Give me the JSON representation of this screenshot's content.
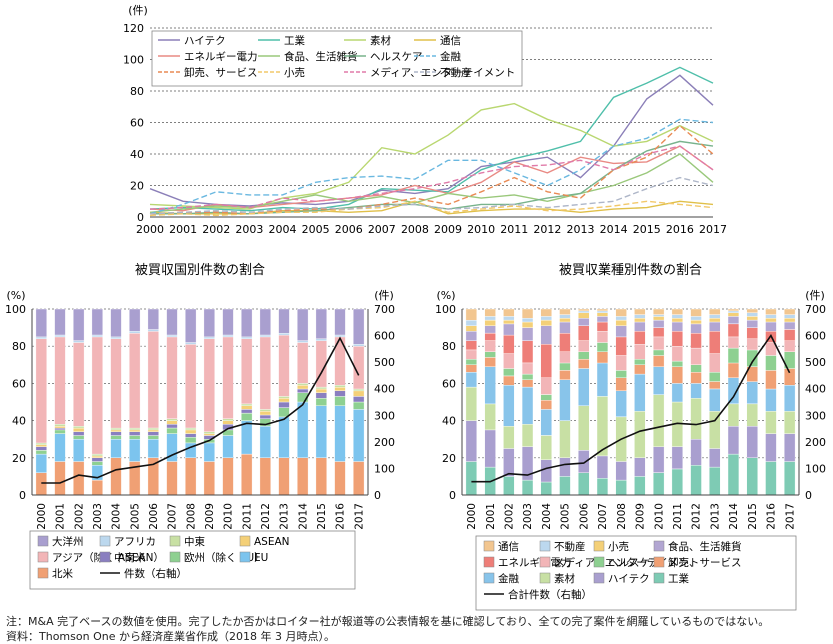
{
  "notes": {
    "note1": "注：M&A 完了ベースの数値を使用。完了したか否かはロイター社が報道等の公表情報を基に確認しており、全ての完了案件を網羅しているものではない。",
    "note2": "資料：Thomson One から経済産業省作成（2018 年 3 月時点）。"
  },
  "chart_data": [
    {
      "type": "line",
      "title": "",
      "ylabel": "(件)",
      "ylim": [
        0,
        120
      ],
      "yticks": [
        "0",
        "20",
        "40",
        "60",
        "80",
        "100",
        "120"
      ],
      "x": [
        "2000",
        "2001",
        "2002",
        "2003",
        "2004",
        "2005",
        "2006",
        "2007",
        "2008",
        "2009",
        "2010",
        "2011",
        "2012",
        "2013",
        "2014",
        "2015",
        "2016",
        "2017"
      ],
      "legend": "top-left",
      "series": [
        {
          "name": "ハイテク",
          "color": "#8b7fb8",
          "dash": "",
          "values": [
            18,
            10,
            8,
            7,
            9,
            8,
            10,
            17,
            15,
            18,
            32,
            35,
            38,
            25,
            45,
            75,
            90,
            71
          ]
        },
        {
          "name": "工業",
          "color": "#4fbfaa",
          "dash": "",
          "values": [
            5,
            6,
            5,
            4,
            6,
            5,
            8,
            18,
            17,
            16,
            30,
            37,
            42,
            48,
            76,
            85,
            95,
            85
          ]
        },
        {
          "name": "素材",
          "color": "#b9d770",
          "dash": "",
          "values": [
            8,
            7,
            6,
            5,
            12,
            15,
            22,
            44,
            40,
            52,
            68,
            72,
            62,
            55,
            45,
            48,
            58,
            48
          ]
        },
        {
          "name": "通信",
          "color": "#e0c04a",
          "dash": "",
          "values": [
            3,
            2,
            2,
            2,
            4,
            4,
            3,
            4,
            10,
            2,
            4,
            5,
            5,
            3,
            5,
            6,
            10,
            8
          ]
        },
        {
          "name": "エネルギー電力",
          "color": "#e98a84",
          "dash": "",
          "values": [
            5,
            4,
            8,
            6,
            8,
            10,
            12,
            14,
            20,
            15,
            22,
            35,
            28,
            38,
            34,
            35,
            45,
            30
          ]
        },
        {
          "name": "食品、生活雑貨",
          "color": "#9ac87b",
          "dash": "",
          "values": [
            3,
            5,
            7,
            6,
            10,
            14,
            10,
            13,
            9,
            15,
            12,
            14,
            10,
            15,
            20,
            28,
            40,
            22
          ]
        },
        {
          "name": "ヘルスケア",
          "color": "#78b38c",
          "dash": "",
          "values": [
            2,
            2,
            3,
            2,
            3,
            4,
            6,
            8,
            8,
            5,
            8,
            8,
            12,
            15,
            30,
            42,
            48,
            45
          ]
        },
        {
          "name": "金融",
          "color": "#6ab8e0",
          "dash": "6,3",
          "values": [
            2,
            8,
            16,
            14,
            14,
            22,
            25,
            26,
            24,
            36,
            36,
            28,
            20,
            30,
            45,
            50,
            62,
            60
          ]
        },
        {
          "name": "卸売、サービス",
          "color": "#e98a54",
          "dash": "6,3",
          "values": [
            2,
            3,
            3,
            2,
            4,
            5,
            5,
            8,
            12,
            8,
            16,
            25,
            16,
            12,
            30,
            38,
            58,
            40
          ]
        },
        {
          "name": "小売",
          "color": "#f2c86a",
          "dash": "6,3",
          "values": [
            1,
            2,
            1,
            2,
            3,
            3,
            5,
            6,
            10,
            3,
            5,
            7,
            4,
            5,
            7,
            10,
            8,
            6
          ]
        },
        {
          "name": "メディア、エンターテイメント",
          "color": "#e07aa8",
          "dash": "6,3",
          "values": [
            5,
            6,
            8,
            6,
            12,
            10,
            12,
            15,
            18,
            22,
            28,
            32,
            33,
            36,
            30,
            40,
            45,
            30
          ]
        },
        {
          "name": "不動産",
          "color": "#aeb6c8",
          "dash": "6,3",
          "values": [
            2,
            3,
            4,
            3,
            5,
            6,
            5,
            7,
            8,
            5,
            6,
            8,
            6,
            8,
            10,
            18,
            25,
            20
          ]
        }
      ]
    },
    {
      "type": "bar",
      "title": "被買収国別件数の割合",
      "ylabel": "(%)",
      "ylabel_right": "(件)",
      "ylim": [
        0,
        100
      ],
      "ylim_right": [
        0,
        700
      ],
      "yticks": [
        "0",
        "20",
        "40",
        "60",
        "80",
        "100"
      ],
      "yticks_right": [
        "0",
        "100",
        "200",
        "300",
        "400",
        "500",
        "600",
        "700"
      ],
      "categories": [
        "2000",
        "2001",
        "2002",
        "2003",
        "2004",
        "2005",
        "2006",
        "2007",
        "2008",
        "2009",
        "2010",
        "2011",
        "2012",
        "2013",
        "2014",
        "2015",
        "2016",
        "2017"
      ],
      "legend": "bottom",
      "series": [
        {
          "name": "北米",
          "color": "#f0a074",
          "values": [
            12,
            18,
            18,
            8,
            20,
            18,
            20,
            18,
            20,
            18,
            20,
            22,
            20,
            20,
            20,
            20,
            18,
            18
          ]
        },
        {
          "name": "EU",
          "color": "#7cc4ee",
          "values": [
            10,
            15,
            12,
            8,
            10,
            12,
            10,
            15,
            8,
            10,
            12,
            18,
            17,
            22,
            30,
            28,
            30,
            28
          ]
        },
        {
          "name": "欧州（除く EU）",
          "color": "#8ed091",
          "values": [
            2,
            2,
            2,
            2,
            2,
            2,
            2,
            3,
            3,
            2,
            3,
            4,
            4,
            5,
            5,
            4,
            5,
            4
          ]
        },
        {
          "name": "中南米",
          "color": "#8a7fc0",
          "values": [
            2,
            1,
            2,
            2,
            2,
            2,
            2,
            2,
            2,
            2,
            3,
            2,
            2,
            3,
            2,
            3,
            3,
            3
          ]
        },
        {
          "name": "ASEAN",
          "color": "#f4d078",
          "values": [
            1,
            1,
            2,
            1,
            1,
            1,
            1,
            2,
            2,
            1,
            2,
            2,
            2,
            2,
            2,
            2,
            2,
            3
          ]
        },
        {
          "name": "中東",
          "color": "#c8e0a4",
          "values": [
            1,
            1,
            1,
            1,
            1,
            1,
            1,
            1,
            1,
            1,
            1,
            1,
            1,
            1,
            1,
            1,
            1,
            1
          ]
        },
        {
          "name": "アジア（除く ASEAN）",
          "color": "#f2b5b7",
          "values": [
            56,
            47,
            45,
            63,
            48,
            51,
            52,
            44,
            45,
            50,
            44,
            35,
            39,
            33,
            22,
            25,
            26,
            23
          ]
        },
        {
          "name": "アフリカ",
          "color": "#bcd8ee",
          "values": [
            1,
            1,
            1,
            1,
            1,
            1,
            1,
            1,
            1,
            1,
            1,
            1,
            1,
            1,
            1,
            1,
            1,
            1
          ]
        },
        {
          "name": "大洋州",
          "color": "#a99fcf",
          "values": [
            15,
            14,
            17,
            14,
            15,
            12,
            11,
            14,
            18,
            15,
            14,
            15,
            14,
            13,
            17,
            16,
            14,
            19
          ]
        }
      ],
      "line": {
        "name": "件数（右軸）",
        "values": [
          45,
          45,
          75,
          65,
          95,
          105,
          115,
          150,
          180,
          205,
          250,
          270,
          265,
          285,
          340,
          460,
          590,
          450
        ]
      }
    },
    {
      "type": "bar",
      "title": "被買収業種別件数の割合",
      "ylabel": "(%)",
      "ylabel_right": "(件)",
      "ylim": [
        0,
        100
      ],
      "ylim_right": [
        0,
        700
      ],
      "yticks": [
        "0",
        "20",
        "40",
        "60",
        "80",
        "100"
      ],
      "yticks_right": [
        "0",
        "100",
        "200",
        "300",
        "400",
        "500",
        "600",
        "700"
      ],
      "categories": [
        "2000",
        "2001",
        "2002",
        "2003",
        "2004",
        "2005",
        "2006",
        "2007",
        "2008",
        "2009",
        "2010",
        "2011",
        "2012",
        "2013",
        "2014",
        "2015",
        "2016",
        "2017"
      ],
      "legend": "bottom",
      "series": [
        {
          "name": "工業",
          "color": "#7ecbb4",
          "values": [
            18,
            15,
            10,
            8,
            7,
            10,
            12,
            9,
            8,
            10,
            12,
            14,
            16,
            15,
            22,
            20,
            18,
            18
          ]
        },
        {
          "name": "ハイテク",
          "color": "#a99fcf",
          "values": [
            22,
            20,
            15,
            18,
            12,
            10,
            12,
            12,
            10,
            10,
            14,
            12,
            14,
            10,
            15,
            17,
            15,
            15
          ]
        },
        {
          "name": "素材",
          "color": "#c8e0a4",
          "values": [
            18,
            14,
            12,
            12,
            13,
            20,
            24,
            32,
            24,
            25,
            28,
            24,
            22,
            20,
            12,
            12,
            12,
            12
          ]
        },
        {
          "name": "金融",
          "color": "#88c4ea",
          "values": [
            8,
            20,
            22,
            20,
            14,
            22,
            20,
            18,
            14,
            20,
            15,
            10,
            8,
            12,
            14,
            12,
            12,
            14
          ]
        },
        {
          "name": "卸売、サービス",
          "color": "#f0a074",
          "values": [
            4,
            5,
            5,
            4,
            5,
            5,
            5,
            6,
            7,
            5,
            6,
            9,
            6,
            4,
            8,
            8,
            10,
            9
          ]
        },
        {
          "name": "ヘルスケア",
          "color": "#8ed091",
          "values": [
            3,
            3,
            4,
            3,
            3,
            4,
            4,
            5,
            4,
            3,
            3,
            3,
            4,
            5,
            8,
            9,
            8,
            9
          ]
        },
        {
          "name": "メディア、エンターテイメント",
          "color": "#f2b5b7",
          "values": [
            5,
            6,
            8,
            6,
            9,
            6,
            6,
            6,
            8,
            8,
            7,
            8,
            9,
            10,
            6,
            6,
            7,
            6
          ]
        },
        {
          "name": "エネルギー電力",
          "color": "#ee7e78",
          "values": [
            5,
            4,
            10,
            12,
            18,
            10,
            8,
            5,
            10,
            7,
            5,
            8,
            8,
            12,
            7,
            6,
            6,
            6
          ]
        },
        {
          "name": "食品、生活雑貨",
          "color": "#b2a6d2",
          "values": [
            5,
            4,
            6,
            7,
            10,
            6,
            4,
            3,
            6,
            5,
            4,
            5,
            5,
            5,
            4,
            4,
            5,
            4
          ]
        },
        {
          "name": "小売",
          "color": "#f4d078",
          "values": [
            3,
            3,
            2,
            3,
            3,
            2,
            3,
            2,
            3,
            2,
            2,
            2,
            2,
            2,
            2,
            2,
            2,
            2
          ]
        },
        {
          "name": "不動産",
          "color": "#bcd8ee",
          "values": [
            3,
            2,
            2,
            2,
            2,
            2,
            1,
            1,
            2,
            2,
            1,
            2,
            2,
            2,
            1,
            2,
            2,
            2
          ]
        },
        {
          "name": "通信",
          "color": "#f2c690",
          "values": [
            6,
            4,
            4,
            5,
            4,
            3,
            1,
            1,
            4,
            3,
            3,
            3,
            4,
            3,
            1,
            2,
            3,
            3
          ]
        }
      ],
      "line": {
        "name": "合計件数（右軸）",
        "values": [
          50,
          50,
          80,
          75,
          100,
          115,
          120,
          170,
          210,
          240,
          255,
          270,
          265,
          280,
          370,
          500,
          600,
          460
        ]
      }
    }
  ]
}
